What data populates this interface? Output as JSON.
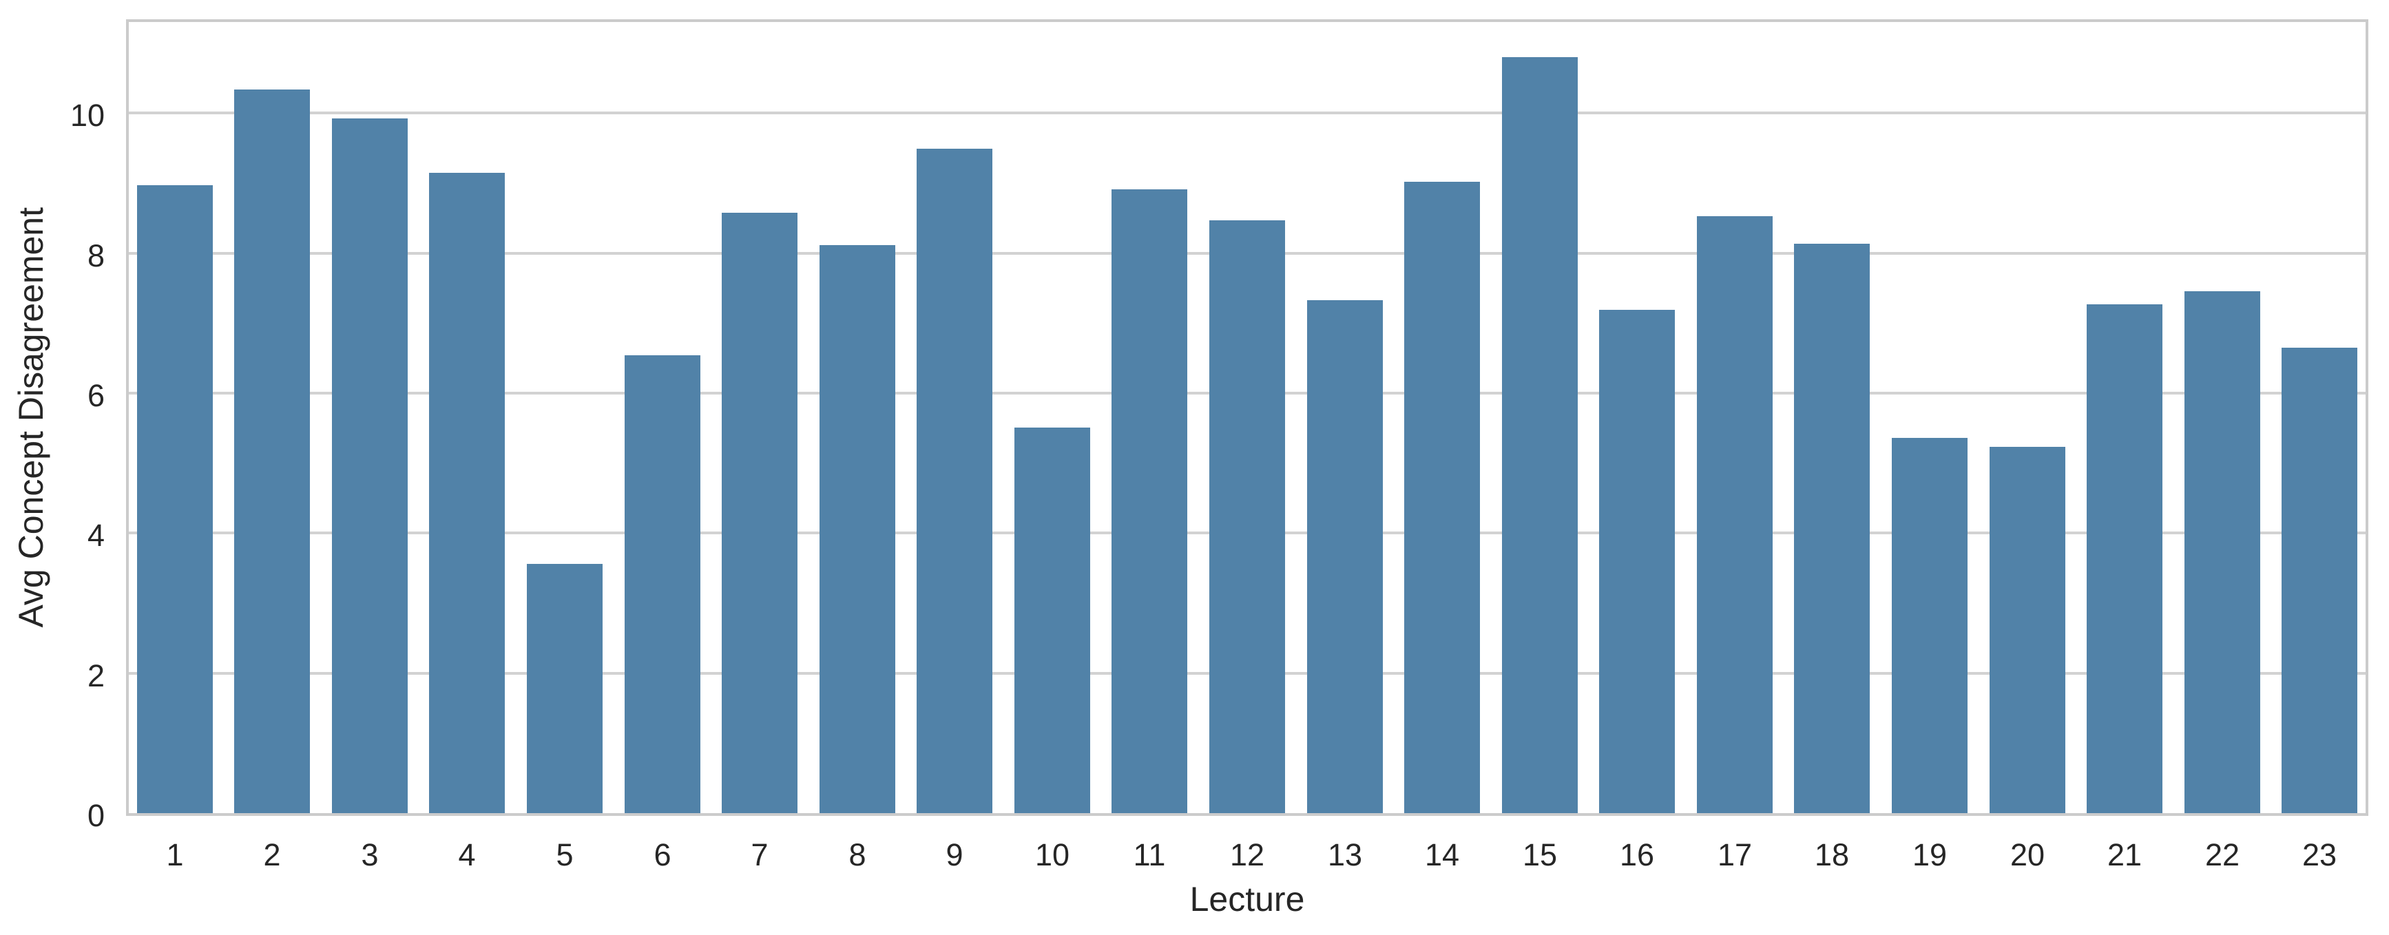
{
  "chart_data": {
    "type": "bar",
    "title": "",
    "xlabel": "Lecture",
    "ylabel": "Avg Concept Disagreement",
    "categories": [
      "1",
      "2",
      "3",
      "4",
      "5",
      "6",
      "7",
      "8",
      "9",
      "10",
      "11",
      "12",
      "13",
      "14",
      "15",
      "16",
      "17",
      "18",
      "19",
      "20",
      "21",
      "22",
      "23"
    ],
    "values": [
      8.97,
      10.34,
      9.92,
      9.15,
      3.56,
      6.54,
      8.58,
      8.11,
      9.49,
      5.51,
      8.91,
      8.47,
      7.33,
      9.02,
      10.8,
      7.19,
      8.53,
      8.13,
      5.36,
      5.23,
      7.27,
      7.46,
      6.65
    ],
    "yticks": [
      0,
      2,
      4,
      6,
      8,
      10
    ],
    "ylim": [
      0,
      11.38
    ],
    "grid": true,
    "legend": null,
    "bar_color": "#5182a8",
    "grid_color": "#d2d2d2",
    "spine_color": "#cbcbcb",
    "text_color": "#262626",
    "background_color": "#ffffff"
  }
}
